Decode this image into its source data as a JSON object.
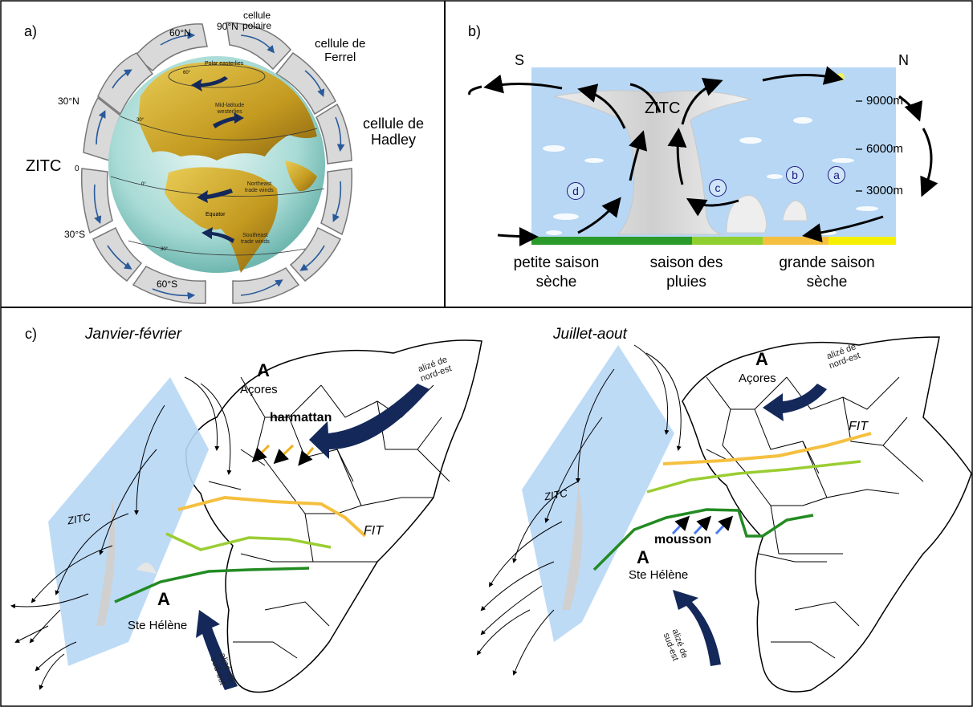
{
  "panel_a": {
    "letter": "a)",
    "zitc": "ZITC",
    "lat_60n": "60°N",
    "lat_90n": "90°N",
    "lat_30n": "30°N",
    "lat_0": "0",
    "lat_30s": "30°S",
    "lat_60s": "60°S",
    "cellule_polaire": "cellule\npolaire",
    "cellule_ferrel": "cellule de\nFerrel",
    "cellule_hadley": "cellule de\nHadley",
    "globe_polar": "Polar easterlies",
    "globe_midlat": "Mid-latitude\nwesterlies",
    "globe_ne_trade": "Northeast\ntrade winds",
    "globe_equator": "Equator",
    "globe_se_trade": "Southeast\ntrade winds",
    "globe_deg_60": "60°",
    "globe_deg_30": "30°",
    "globe_deg_0": "0°",
    "globe_deg_30s": "30°"
  },
  "panel_b": {
    "letter": "b)",
    "south": "S",
    "north": "N",
    "zitc": "ZITC",
    "alt_9000": "9000m",
    "alt_6000": "6000m",
    "alt_3000": "3000m",
    "marker_a": "a",
    "marker_b": "b",
    "marker_c": "c",
    "marker_d": "d",
    "season_petite": "petite saison\nsèche",
    "season_pluies": "saison des\npluies",
    "season_grande": "grande saison\nsèche"
  },
  "panel_c": {
    "letter": "c)",
    "left": {
      "title": "Janvier-février",
      "high_n": "A",
      "acores": "Açores",
      "harmattan": "harmattan",
      "alize_ne": "alizé de\nnord-est",
      "fit": "FIT",
      "zitc": "ZITC",
      "high_s": "A",
      "ste_helene": "Ste Hélène",
      "alize_se": "alizé de\nsud-est"
    },
    "right": {
      "title": "Juillet-aout",
      "high_n": "A",
      "acores": "Açores",
      "alize_ne": "alizé de\nnord-est",
      "fit": "FIT",
      "zitc": "ZITC",
      "mousson": "mousson",
      "high_s": "A",
      "ste_helene": "Ste Hélène",
      "alize_se": "alizé de\nsud-est"
    }
  },
  "colors": {
    "sky": "#b7d7f5",
    "wind_arrow": "#14285a",
    "fit_orange": "#f5c040",
    "line_lightgreen": "#9acd32",
    "line_green": "#228b22",
    "harmattan": "#f0b020",
    "mousson": "#4a7cf0",
    "cell_fill": "#d8d8d8"
  },
  "icons": [
    "circulation-arrow-icon",
    "wind-arrow-icon",
    "cloud-icon",
    "sun-icon"
  ]
}
